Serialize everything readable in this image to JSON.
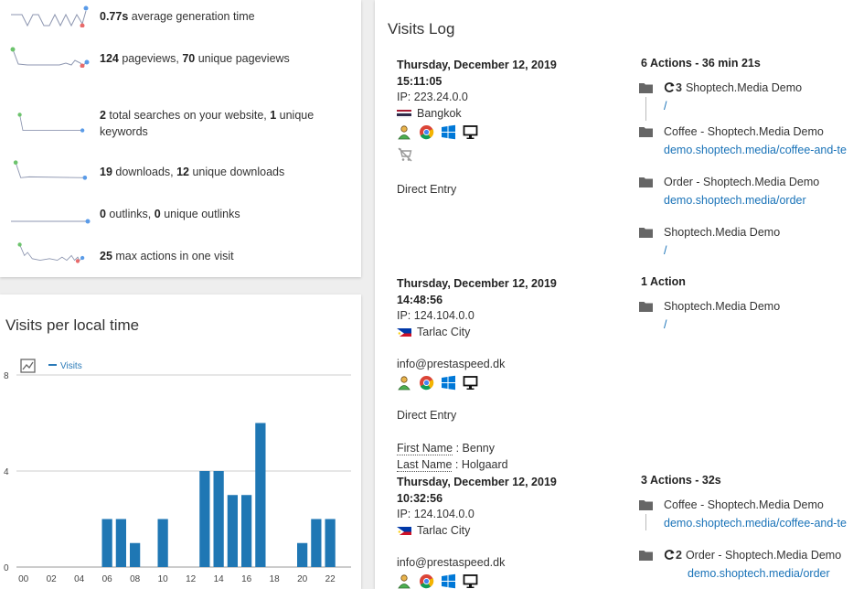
{
  "overview": {
    "rows": [
      {
        "value": "0.77s",
        "text": " average generation time"
      },
      {
        "value": "124",
        "text": " pageviews, ",
        "value2": "70",
        "text2": " unique pageviews"
      },
      {
        "value": "2",
        "text": " total searches on your website, ",
        "value2": "1",
        "text2": " unique keywords"
      },
      {
        "value": "19",
        "text": " downloads, ",
        "value2": "12",
        "text2": " unique downloads"
      },
      {
        "value": "0",
        "text": " outlinks, ",
        "value2": "0",
        "text2": " unique outlinks"
      },
      {
        "value": "25",
        "text": " max actions in one visit"
      }
    ]
  },
  "vplt": {
    "title": "Visits per local time",
    "legend": "Visits",
    "series_color": "#1f77b4"
  },
  "chart_data": {
    "type": "bar",
    "title": "Visits per local time",
    "categories": [
      "00",
      "01",
      "02",
      "03",
      "04",
      "05",
      "06",
      "07",
      "08",
      "09",
      "10",
      "11",
      "12",
      "13",
      "14",
      "15",
      "16",
      "17",
      "18",
      "19",
      "20",
      "21",
      "22",
      "23"
    ],
    "tick_labels": [
      "00",
      "02",
      "04",
      "06",
      "08",
      "10",
      "12",
      "14",
      "16",
      "18",
      "20",
      "22"
    ],
    "series": [
      {
        "name": "Visits",
        "values": [
          0,
          0,
          0,
          0,
          0,
          0,
          2,
          2,
          1,
          0,
          2,
          0,
          0,
          4,
          4,
          3,
          3,
          6,
          0,
          0,
          1,
          2,
          2,
          0
        ]
      }
    ],
    "yticks": [
      "0",
      "4",
      "8"
    ],
    "ylim": [
      0,
      8
    ]
  },
  "visitslog": {
    "title": "Visits Log",
    "visits": [
      {
        "date": "Thursday, December 12, 2019",
        "time": "15:11:05",
        "ip": "IP: 223.24.0.0",
        "city": "Bangkok",
        "referrer": "Direct Entry",
        "actions_title": "6 Actions - 36 min 21s",
        "actions": [
          {
            "title": "Shoptech.Media Demo",
            "url": "/",
            "reload": "3"
          },
          {
            "title": "Coffee - Shoptech.Media Demo",
            "url": "demo.shoptech.media/coffee-and-te"
          },
          {
            "title": "Order - Shoptech.Media Demo",
            "url": "demo.shoptech.media/order"
          },
          {
            "title": "Shoptech.Media Demo",
            "url": "/"
          }
        ]
      },
      {
        "date": "Thursday, December 12, 2019",
        "time": "14:48:56",
        "ip": "IP: 124.104.0.0",
        "city": "Tarlac City",
        "user": "info@prestaspeed.dk",
        "referrer": "Direct Entry",
        "first_name_label": "First Name",
        "first_name": " : Benny",
        "last_name_label": "Last Name",
        "last_name": " : Holgaard",
        "actions_title": "1 Action",
        "actions": [
          {
            "title": "Shoptech.Media Demo",
            "url": "/"
          }
        ]
      },
      {
        "date": "Thursday, December 12, 2019",
        "time": "10:32:56",
        "ip": "IP: 124.104.0.0",
        "city": "Tarlac City",
        "user": "info@prestaspeed.dk",
        "actions_title": "3 Actions - 32s",
        "actions": [
          {
            "title": "Coffee - Shoptech.Media Demo",
            "url": "demo.shoptech.media/coffee-and-te"
          },
          {
            "title": "Order - Shoptech.Media Demo",
            "url": "demo.shoptech.media/order",
            "reload": "2"
          }
        ]
      }
    ]
  }
}
